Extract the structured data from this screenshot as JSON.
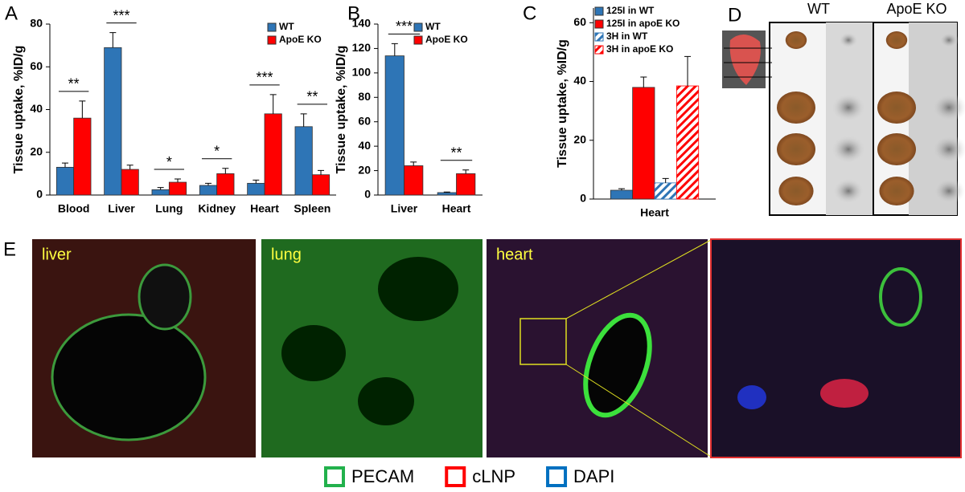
{
  "chart_data": [
    {
      "type": "bar",
      "label": "A",
      "y_label": "Tissue uptake, %ID/g",
      "categories": [
        "Blood",
        "Liver",
        "Lung",
        "Kidney",
        "Heart",
        "Spleen"
      ],
      "series": [
        {
          "name": "WT",
          "color": "#2e75b6",
          "values": [
            13,
            69,
            2.5,
            4.5,
            5.5,
            32
          ],
          "errors": [
            2,
            7,
            1,
            1,
            1.5,
            6
          ]
        },
        {
          "name": "ApoE KO",
          "color": "#ff0000",
          "values": [
            36,
            12,
            6,
            10,
            38,
            9.5
          ],
          "errors": [
            8,
            2,
            1.5,
            2.5,
            9,
            2
          ]
        }
      ],
      "significance": [
        "**",
        "***",
        "*",
        "*",
        "***",
        "**"
      ],
      "ylim": [
        0,
        80
      ],
      "yticks": [
        0,
        20,
        40,
        60,
        80
      ],
      "legend": "top-right"
    },
    {
      "type": "bar",
      "label": "B",
      "y_label": "Tissue uptake, %ID/g",
      "categories": [
        "Liver",
        "Heart"
      ],
      "series": [
        {
          "name": "WT",
          "color": "#2e75b6",
          "values": [
            114,
            2
          ],
          "errors": [
            10,
            0.5
          ]
        },
        {
          "name": "ApoE KO",
          "color": "#ff0000",
          "values": [
            24,
            17.5
          ],
          "errors": [
            3,
            3
          ]
        }
      ],
      "significance": [
        "***",
        "**"
      ],
      "ylim": [
        0,
        140
      ],
      "yticks": [
        0,
        20,
        40,
        60,
        80,
        100,
        120,
        140
      ],
      "legend": "top-right"
    },
    {
      "type": "bar",
      "label": "C",
      "y_label": "Tissue uptake, %ID/g",
      "categories": [
        "Heart"
      ],
      "series": [
        {
          "name": "125I in WT",
          "color": "#2e75b6",
          "hatch": false,
          "values": [
            3
          ],
          "errors": [
            0.5
          ]
        },
        {
          "name": "125I in apoE KO",
          "color": "#ff0000",
          "hatch": false,
          "values": [
            38
          ],
          "errors": [
            3.5
          ]
        },
        {
          "name": "3H in WT",
          "color": "#2e75b6",
          "hatch": true,
          "values": [
            5.5
          ],
          "errors": [
            1.5
          ]
        },
        {
          "name": "3H in apoE KO",
          "color": "#ff0000",
          "hatch": true,
          "values": [
            38.5
          ],
          "errors": [
            10
          ]
        }
      ],
      "ylim": [
        0,
        65
      ],
      "yticks": [
        0,
        20,
        40,
        60
      ],
      "legend": "top-left"
    }
  ],
  "panel_d": {
    "label": "D",
    "columns": [
      "WT",
      "ApoE KO"
    ]
  },
  "panel_e": {
    "label": "E",
    "images": [
      "liver",
      "lung",
      "heart"
    ],
    "legend": [
      {
        "name": "PECAM",
        "color": "#22b14c"
      },
      {
        "name": "cLNP",
        "color": "#ff0000"
      },
      {
        "name": "DAPI",
        "color": "#0070c0"
      }
    ]
  }
}
